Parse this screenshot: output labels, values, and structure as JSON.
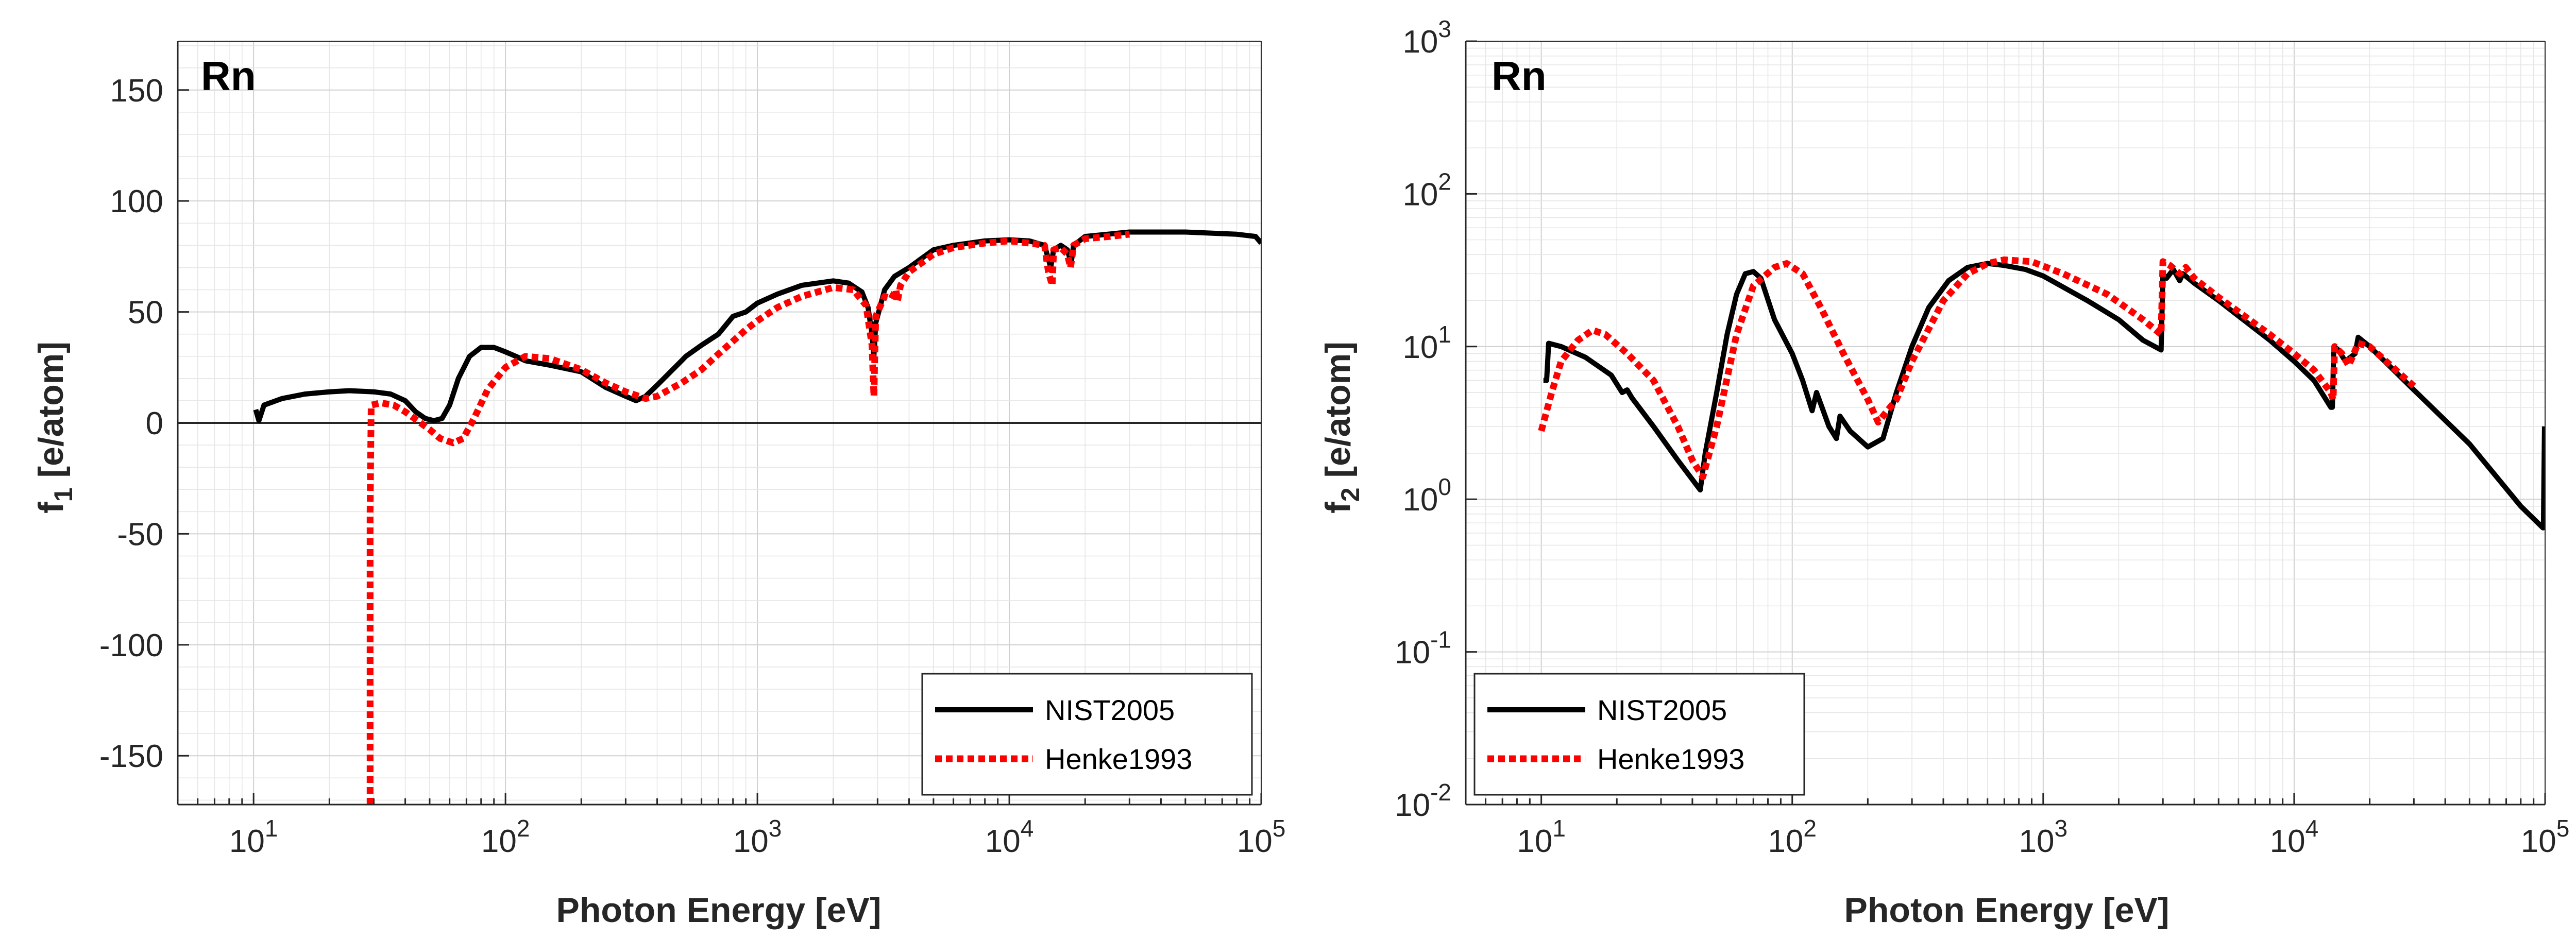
{
  "colors": {
    "nist": "#000000",
    "henke": "#ff0000"
  },
  "chart_data": [
    {
      "type": "line",
      "panel_label": "Rn",
      "xlabel": "Photon Energy [eV]",
      "ylabel_main": "f",
      "ylabel_sub": "1",
      "ylabel_rest": " [e/atom]",
      "xscale": "log",
      "yscale": "linear",
      "xlim": [
        5,
        100000
      ],
      "ylim": [
        -172,
        172
      ],
      "x_ticks": [
        {
          "value": 10,
          "base": "10",
          "exp": "1"
        },
        {
          "value": 100,
          "base": "10",
          "exp": "2"
        },
        {
          "value": 1000,
          "base": "10",
          "exp": "3"
        },
        {
          "value": 10000,
          "base": "10",
          "exp": "4"
        },
        {
          "value": 100000,
          "base": "10",
          "exp": "5"
        }
      ],
      "y_ticks": [
        {
          "value": 150,
          "label": "150"
        },
        {
          "value": 100,
          "label": "100"
        },
        {
          "value": 50,
          "label": "50"
        },
        {
          "value": 0,
          "label": "0"
        },
        {
          "value": -50,
          "label": "-50"
        },
        {
          "value": -100,
          "label": "-100"
        },
        {
          "value": -150,
          "label": "-150"
        }
      ],
      "grid": true,
      "zero_line": true,
      "legend_position": "bottom-right",
      "series": [
        {
          "name": "NIST2005",
          "style": "solid",
          "points": [
            [
              10.2,
              6
            ],
            [
              10.5,
              1
            ],
            [
              11,
              8
            ],
            [
              13,
              11
            ],
            [
              16,
              13
            ],
            [
              20,
              14
            ],
            [
              24,
              14.5
            ],
            [
              30,
              14
            ],
            [
              35,
              13
            ],
            [
              40,
              10
            ],
            [
              44,
              5
            ],
            [
              48,
              2
            ],
            [
              52,
              1
            ],
            [
              56,
              2
            ],
            [
              60,
              8
            ],
            [
              65,
              20
            ],
            [
              72,
              30
            ],
            [
              80,
              34
            ],
            [
              90,
              34
            ],
            [
              100,
              32
            ],
            [
              110,
              30
            ],
            [
              120,
              28
            ],
            [
              150,
              26
            ],
            [
              200,
              23
            ],
            [
              250,
              16
            ],
            [
              300,
              12
            ],
            [
              330,
              10
            ],
            [
              360,
              12
            ],
            [
              400,
              17
            ],
            [
              500,
              28
            ],
            [
              520,
              30
            ],
            [
              600,
              35
            ],
            [
              700,
              40
            ],
            [
              800,
              48
            ],
            [
              900,
              50
            ],
            [
              1000,
              54
            ],
            [
              1200,
              58
            ],
            [
              1500,
              62
            ],
            [
              2000,
              64
            ],
            [
              2300,
              63
            ],
            [
              2600,
              59
            ],
            [
              2750,
              52
            ],
            [
              2850,
              40
            ],
            [
              2900,
              30
            ],
            [
              2950,
              45
            ],
            [
              3200,
              60
            ],
            [
              3500,
              66
            ],
            [
              4000,
              70
            ],
            [
              5000,
              78
            ],
            [
              6000,
              80
            ],
            [
              8000,
              82
            ],
            [
              10000,
              82.5
            ],
            [
              12000,
              82
            ],
            [
              13800,
              80
            ],
            [
              14200,
              75
            ],
            [
              14600,
              70
            ],
            [
              15000,
              78
            ],
            [
              16000,
              80
            ],
            [
              17000,
              78
            ],
            [
              17600,
              72
            ],
            [
              18000,
              80
            ],
            [
              20000,
              84
            ],
            [
              30000,
              86
            ],
            [
              50000,
              86
            ],
            [
              80000,
              85
            ],
            [
              95000,
              84
            ],
            [
              100000,
              81
            ]
          ]
        },
        {
          "name": "Henke1993",
          "style": "dotted",
          "points": [
            [
              29,
              -172
            ],
            [
              29,
              -40
            ],
            [
              29.3,
              8
            ],
            [
              32,
              9
            ],
            [
              36,
              8
            ],
            [
              40,
              5
            ],
            [
              46,
              0
            ],
            [
              50,
              -3
            ],
            [
              55,
              -7
            ],
            [
              62,
              -9
            ],
            [
              68,
              -7
            ],
            [
              75,
              2
            ],
            [
              85,
              15
            ],
            [
              100,
              25
            ],
            [
              120,
              30
            ],
            [
              150,
              29
            ],
            [
              200,
              24
            ],
            [
              250,
              18
            ],
            [
              300,
              14
            ],
            [
              360,
              11
            ],
            [
              400,
              12
            ],
            [
              500,
              18
            ],
            [
              600,
              24
            ],
            [
              700,
              31
            ],
            [
              900,
              42
            ],
            [
              1000,
              46
            ],
            [
              1200,
              52
            ],
            [
              1500,
              57
            ],
            [
              2000,
              61
            ],
            [
              2400,
              60
            ],
            [
              2700,
              53
            ],
            [
              2850,
              35
            ],
            [
              2900,
              12
            ],
            [
              2950,
              48
            ],
            [
              3200,
              57
            ],
            [
              3400,
              56
            ],
            [
              3550,
              60
            ],
            [
              3600,
              55
            ],
            [
              3700,
              62
            ],
            [
              4000,
              68
            ],
            [
              5000,
              76
            ],
            [
              6000,
              79
            ],
            [
              8000,
              81
            ],
            [
              10000,
              82
            ],
            [
              12000,
              81
            ],
            [
              13800,
              80
            ],
            [
              14300,
              68
            ],
            [
              14800,
              62
            ],
            [
              15000,
              78
            ],
            [
              16000,
              79
            ],
            [
              17000,
              76
            ],
            [
              17500,
              70
            ],
            [
              18000,
              80
            ],
            [
              20000,
              83
            ],
            [
              25000,
              84
            ],
            [
              30000,
              85
            ]
          ]
        }
      ]
    },
    {
      "type": "line",
      "panel_label": "Rn",
      "xlabel": "Photon Energy [eV]",
      "ylabel_main": "f",
      "ylabel_sub": "2",
      "ylabel_rest": " [e/atom]",
      "xscale": "log",
      "yscale": "log",
      "xlim": [
        5,
        100000
      ],
      "ylim": [
        0.01,
        1000
      ],
      "x_ticks": [
        {
          "value": 10,
          "base": "10",
          "exp": "1"
        },
        {
          "value": 100,
          "base": "10",
          "exp": "2"
        },
        {
          "value": 1000,
          "base": "10",
          "exp": "3"
        },
        {
          "value": 10000,
          "base": "10",
          "exp": "4"
        },
        {
          "value": 100000,
          "base": "10",
          "exp": "5"
        }
      ],
      "y_ticks": [
        {
          "value": 1000,
          "base": "10",
          "exp": "3"
        },
        {
          "value": 100,
          "base": "10",
          "exp": "2"
        },
        {
          "value": 10,
          "base": "10",
          "exp": "1"
        },
        {
          "value": 1,
          "base": "10",
          "exp": "0"
        },
        {
          "value": 0.1,
          "base": "10",
          "exp": "-1"
        },
        {
          "value": 0.01,
          "base": "10",
          "exp": "-2"
        }
      ],
      "grid": true,
      "legend_position": "bottom-left",
      "series": [
        {
          "name": "NIST2005",
          "style": "solid",
          "points": [
            [
              10.2,
              6
            ],
            [
              10.5,
              6
            ],
            [
              10.7,
              10.5
            ],
            [
              12,
              10
            ],
            [
              15,
              8.5
            ],
            [
              19,
              6.5
            ],
            [
              21,
              5
            ],
            [
              22,
              5.2
            ],
            [
              23,
              4.6
            ],
            [
              28,
              3
            ],
            [
              35,
              1.8
            ],
            [
              43,
              1.15
            ],
            [
              45,
              2
            ],
            [
              50,
              5
            ],
            [
              55,
              12
            ],
            [
              60,
              22
            ],
            [
              65,
              30
            ],
            [
              70,
              31
            ],
            [
              75,
              28
            ],
            [
              85,
              15
            ],
            [
              100,
              9
            ],
            [
              110,
              6
            ],
            [
              120,
              3.8
            ],
            [
              125,
              5
            ],
            [
              130,
              4.2
            ],
            [
              140,
              3
            ],
            [
              150,
              2.5
            ],
            [
              155,
              3.5
            ],
            [
              170,
              2.8
            ],
            [
              200,
              2.2
            ],
            [
              230,
              2.5
            ],
            [
              260,
              5
            ],
            [
              300,
              10
            ],
            [
              350,
              18
            ],
            [
              420,
              27
            ],
            [
              500,
              33
            ],
            [
              600,
              35
            ],
            [
              700,
              34
            ],
            [
              850,
              32
            ],
            [
              1000,
              29
            ],
            [
              1500,
              20
            ],
            [
              2000,
              15
            ],
            [
              2500,
              11
            ],
            [
              2950,
              9.5
            ],
            [
              3000,
              30
            ],
            [
              3100,
              28
            ],
            [
              3300,
              32
            ],
            [
              3500,
              27
            ],
            [
              3600,
              30
            ],
            [
              4000,
              26
            ],
            [
              5000,
              20
            ],
            [
              8000,
              11
            ],
            [
              10000,
              8
            ],
            [
              12000,
              6
            ],
            [
              14000,
              4
            ],
            [
              14200,
              4
            ],
            [
              14400,
              10
            ],
            [
              15000,
              9.5
            ],
            [
              16000,
              8
            ],
            [
              17500,
              9
            ],
            [
              18000,
              11.5
            ],
            [
              20000,
              10
            ],
            [
              30000,
              5.2
            ],
            [
              50000,
              2.3
            ],
            [
              80000,
              0.9
            ],
            [
              98000,
              0.65
            ],
            [
              98500,
              0.65
            ],
            [
              99000,
              1.5
            ],
            [
              99500,
              3
            ]
          ]
        },
        {
          "name": "Henke1993",
          "style": "dotted",
          "points": [
            [
              10,
              2.8
            ],
            [
              11,
              5
            ],
            [
              12,
              8
            ],
            [
              14,
              11
            ],
            [
              16,
              12.8
            ],
            [
              18,
              12
            ],
            [
              22,
              9
            ],
            [
              28,
              6
            ],
            [
              35,
              3
            ],
            [
              40,
              1.8
            ],
            [
              44,
              1.4
            ],
            [
              50,
              3
            ],
            [
              60,
              12
            ],
            [
              70,
              25
            ],
            [
              85,
              33
            ],
            [
              95,
              35
            ],
            [
              110,
              30
            ],
            [
              130,
              18
            ],
            [
              160,
              9
            ],
            [
              200,
              4.5
            ],
            [
              220,
              3.2
            ],
            [
              260,
              4.5
            ],
            [
              300,
              8
            ],
            [
              400,
              20
            ],
            [
              500,
              30
            ],
            [
              600,
              35
            ],
            [
              700,
              37
            ],
            [
              900,
              36
            ],
            [
              1200,
              30
            ],
            [
              1800,
              22
            ],
            [
              2500,
              15
            ],
            [
              2950,
              12
            ],
            [
              3000,
              36
            ],
            [
              3200,
              34
            ],
            [
              3500,
              30
            ],
            [
              3700,
              33
            ],
            [
              4000,
              28
            ],
            [
              5000,
              21
            ],
            [
              8000,
              12
            ],
            [
              10000,
              9
            ],
            [
              12000,
              7
            ],
            [
              14000,
              5
            ],
            [
              14300,
              4.5
            ],
            [
              14500,
              10
            ],
            [
              15500,
              9
            ],
            [
              16500,
              7.5
            ],
            [
              18000,
              10.5
            ],
            [
              20000,
              10
            ],
            [
              30000,
              5.5
            ]
          ]
        }
      ]
    }
  ]
}
